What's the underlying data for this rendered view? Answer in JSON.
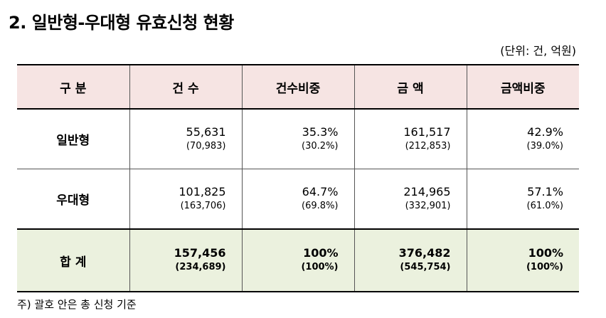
{
  "title": "2. 일반형-우대형 유효신청 현황",
  "unit_note": "(단위: 건, 억원)",
  "table": {
    "headers": [
      "구 분",
      "건 수",
      "건수비중",
      "금 액",
      "금액비중"
    ],
    "rows": [
      {
        "label": "일반형",
        "count": "55,631",
        "count_sub": "(70,983)",
        "count_share": "35.3%",
        "count_share_sub": "(30.2%)",
        "amount": "161,517",
        "amount_sub": "(212,853)",
        "amount_share": "42.9%",
        "amount_share_sub": "(39.0%)"
      },
      {
        "label": "우대형",
        "count": "101,825",
        "count_sub": "(163,706)",
        "count_share": "64.7%",
        "count_share_sub": "(69.8%)",
        "amount": "214,965",
        "amount_sub": "(332,901)",
        "amount_share": "57.1%",
        "amount_share_sub": "(61.0%)"
      },
      {
        "label": "합 계",
        "count": "157,456",
        "count_sub": "(234,689)",
        "count_share": "100%",
        "count_share_sub": "(100%)",
        "amount": "376,482",
        "amount_sub": "(545,754)",
        "amount_share": "100%",
        "amount_share_sub": "(100%)"
      }
    ]
  },
  "footnote": "주) 괄호 안은 총 신청 기준",
  "colors": {
    "header_bg": "#f6e4e3",
    "total_bg": "#ebf1de"
  }
}
